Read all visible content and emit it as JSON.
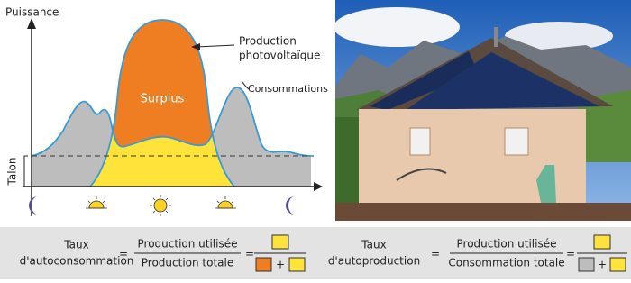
{
  "diagram": {
    "y_axis_label": "Puissance",
    "production_label": [
      "Production",
      "photovoltaïque"
    ],
    "surplus_label": "Surplus",
    "consumption_label": "Consommations",
    "base_load_label": "Talon"
  },
  "formulas": [
    {
      "name": [
        "Taux",
        "d'autoconsommation"
      ],
      "numerator": "Production utilisée",
      "denominator": "Production totale"
    },
    {
      "name": [
        "Taux",
        "d'autoproduction"
      ],
      "numerator": "Production utilisée",
      "denominator": "Consommation totale"
    }
  ],
  "operators": {
    "equals": "=",
    "plus": "+"
  }
}
